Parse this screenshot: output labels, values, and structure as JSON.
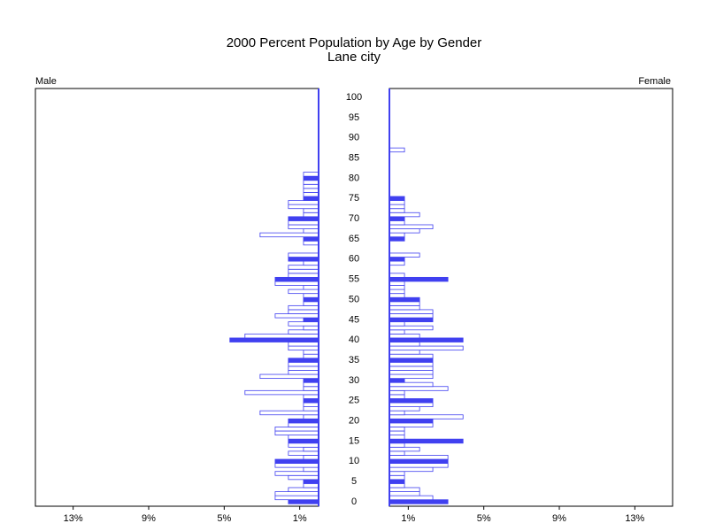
{
  "chart_data": {
    "type": "population_pyramid",
    "title": "2000 Percent Population by Age by Gender",
    "subtitle": "Lane city",
    "ages": [
      0,
      1,
      2,
      3,
      4,
      5,
      6,
      7,
      8,
      9,
      10,
      11,
      12,
      13,
      14,
      15,
      16,
      17,
      18,
      19,
      20,
      21,
      22,
      23,
      24,
      25,
      26,
      27,
      28,
      29,
      30,
      31,
      32,
      33,
      34,
      35,
      36,
      37,
      38,
      39,
      40,
      41,
      42,
      43,
      44,
      45,
      46,
      47,
      48,
      49,
      50,
      51,
      52,
      53,
      54,
      55,
      56,
      57,
      58,
      59,
      60,
      61,
      62,
      63,
      64,
      65,
      66,
      67,
      68,
      69,
      70,
      71,
      72,
      73,
      74,
      75,
      76,
      77,
      78,
      79,
      80,
      81,
      82,
      83,
      84,
      85,
      86,
      87,
      88,
      89,
      90,
      91,
      92,
      93,
      94,
      95,
      96,
      97,
      98,
      99,
      100
    ],
    "ylim": [
      -1.1,
      102.2
    ],
    "yticks": [
      0,
      5,
      10,
      15,
      20,
      25,
      30,
      35,
      40,
      45,
      50,
      55,
      60,
      65,
      70,
      75,
      80,
      85,
      90,
      95,
      100
    ],
    "series": [
      {
        "name": "Male",
        "color": "#4040f0",
        "xlim": [
          15,
          0
        ],
        "xticks": [
          {
            "value": 13,
            "label": "13%"
          },
          {
            "value": 9,
            "label": "9%"
          },
          {
            "value": 5,
            "label": "5%"
          },
          {
            "value": 1,
            "label": "1%"
          }
        ],
        "values": [
          1.6,
          2.3,
          2.3,
          1.6,
          0.8,
          0.8,
          1.6,
          2.3,
          0.8,
          2.3,
          2.3,
          0.8,
          1.6,
          0.8,
          1.6,
          1.6,
          1.6,
          2.3,
          2.3,
          1.6,
          1.6,
          0.8,
          3.1,
          0.8,
          0.8,
          0.8,
          0.8,
          3.9,
          0.8,
          0.8,
          0.8,
          3.1,
          1.6,
          1.6,
          1.6,
          1.6,
          0.8,
          0.8,
          1.6,
          1.6,
          4.7,
          3.9,
          1.6,
          0.8,
          1.6,
          0.8,
          2.3,
          1.6,
          1.6,
          0.8,
          0.8,
          0.8,
          1.6,
          0.8,
          2.3,
          2.3,
          1.6,
          1.6,
          1.6,
          0.8,
          1.6,
          1.6,
          0,
          0,
          0.8,
          0.8,
          3.1,
          0.8,
          1.6,
          1.6,
          1.6,
          0.8,
          0.8,
          1.6,
          1.6,
          0.8,
          0.8,
          0.8,
          0.8,
          0.8,
          0.8,
          0.8,
          0,
          0,
          0,
          0,
          0,
          0,
          0,
          0,
          0,
          0,
          0,
          0,
          0,
          0,
          0,
          0,
          0,
          0,
          0
        ]
      },
      {
        "name": "Female",
        "color": "#4040f0",
        "xlim": [
          0,
          15
        ],
        "xticks": [
          {
            "value": 1,
            "label": "1%"
          },
          {
            "value": 5,
            "label": "5%"
          },
          {
            "value": 9,
            "label": "9%"
          },
          {
            "value": 13,
            "label": "13%"
          }
        ],
        "values": [
          3.1,
          2.3,
          1.6,
          1.6,
          0.8,
          0.8,
          0.8,
          0.8,
          2.3,
          3.1,
          3.1,
          3.1,
          0.8,
          1.6,
          0.8,
          3.9,
          0.8,
          0.8,
          0.8,
          2.3,
          2.3,
          3.9,
          0.8,
          1.6,
          2.3,
          2.3,
          0.8,
          0.8,
          3.1,
          2.3,
          0.8,
          2.3,
          2.3,
          2.3,
          2.3,
          2.3,
          2.3,
          1.6,
          3.9,
          1.6,
          3.9,
          1.6,
          0.8,
          2.3,
          0.8,
          2.3,
          2.3,
          2.3,
          1.6,
          1.6,
          1.6,
          0.8,
          0.8,
          0.8,
          0.8,
          3.1,
          0.8,
          0,
          0,
          0.8,
          0.8,
          1.6,
          0,
          0,
          0,
          0.8,
          0.8,
          1.6,
          2.3,
          0.8,
          0.8,
          1.6,
          0.8,
          0.8,
          0.8,
          0.8,
          0,
          0,
          0,
          0,
          0,
          0,
          0,
          0,
          0,
          0,
          0,
          0.8,
          0,
          0,
          0,
          0,
          0,
          0,
          0,
          0,
          0,
          0,
          0,
          0,
          0
        ]
      }
    ]
  }
}
